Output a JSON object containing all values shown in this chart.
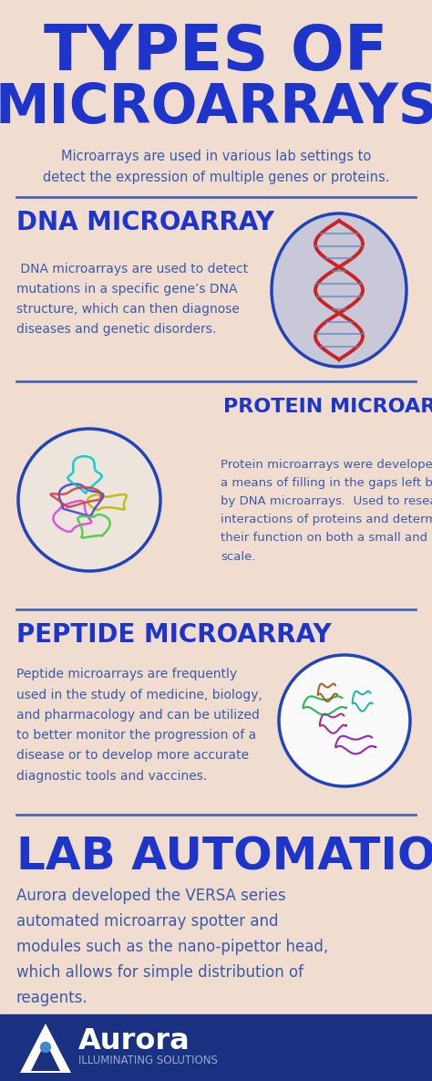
{
  "title_line1": "TYPES OF",
  "title_line2": "MICROARRAYS",
  "title_color": "#1E35CC",
  "bg_color": "#F0DDD0",
  "intro_text": "Microarrays are used in various lab settings to\ndetect the expression of multiple genes or proteins.",
  "intro_color": "#3A5AAA",
  "divider_color": "#4466BB",
  "section1_title": "DNA MICROARRAY",
  "section1_body": " DNA microarrays are used to detect\nmutations in a specific gene’s DNA\nstructure, which can then diagnose\ndiseases and genetic disorders.",
  "section2_title": "PROTEIN MICROARRAY",
  "section2_body": "Protein microarrays were developed as\na means of filling in the gaps left behind\nby DNA microarrays.  Used to research\ninteractions of proteins and determine\ntheir function on both a small and large\nscale.",
  "section3_title": "PEPTIDE MICROARRAY",
  "section3_body": "Peptide microarrays are frequently\nused in the study of medicine, biology,\nand pharmacology and can be utilized\nto better monitor the progression of a\ndisease or to develop more accurate\ndiagnostic tools and vaccines.",
  "section4_title": "LAB AUTOMATION",
  "section4_body": "Aurora developed the VERSA series\nautomated microarray spotter and\nmodules such as the nano-pipettor head,\nwhich allows for simple distribution of\nreagents.",
  "section_title_color": "#1E35CC",
  "section_body_color": "#3A5AAA",
  "footer_bg": "#1A3080",
  "footer_aurora": "Aurora",
  "footer_tagline": "ILLUMINATING SOLUTIONS",
  "footer_color": "#FFFFFF"
}
